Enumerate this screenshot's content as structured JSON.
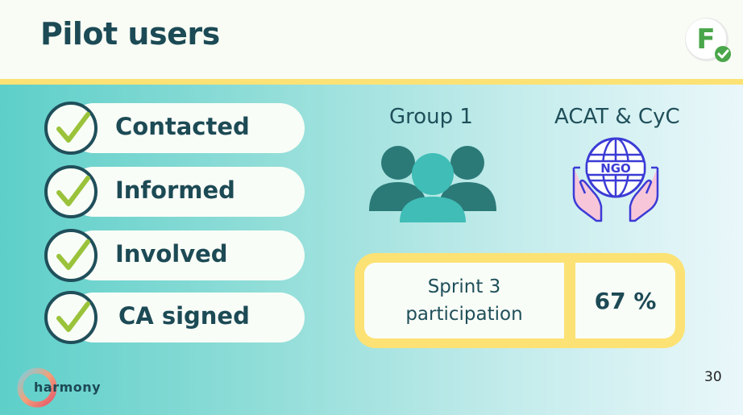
{
  "header": {
    "title": "Pilot users"
  },
  "checklist": [
    {
      "label": "Contacted"
    },
    {
      "label": "Informed"
    },
    {
      "label": "Involved"
    },
    {
      "label": "CA signed"
    }
  ],
  "groups": {
    "group1_label": "Group 1",
    "group2_label": "ACAT & CyC",
    "ngo_text": "NGO"
  },
  "sprint": {
    "label_line1": "Sprint 3",
    "label_line2": "participation",
    "value": "67 %"
  },
  "footer": {
    "logo_text": "harmony",
    "page_number": "30"
  },
  "badge": {
    "letter": "F"
  },
  "colors": {
    "dark_teal": "#1c4a55",
    "accent_yellow": "#fce274",
    "check_green": "#9ac33b",
    "people_dark": "#2b7a78",
    "people_light": "#3fbdb6"
  }
}
